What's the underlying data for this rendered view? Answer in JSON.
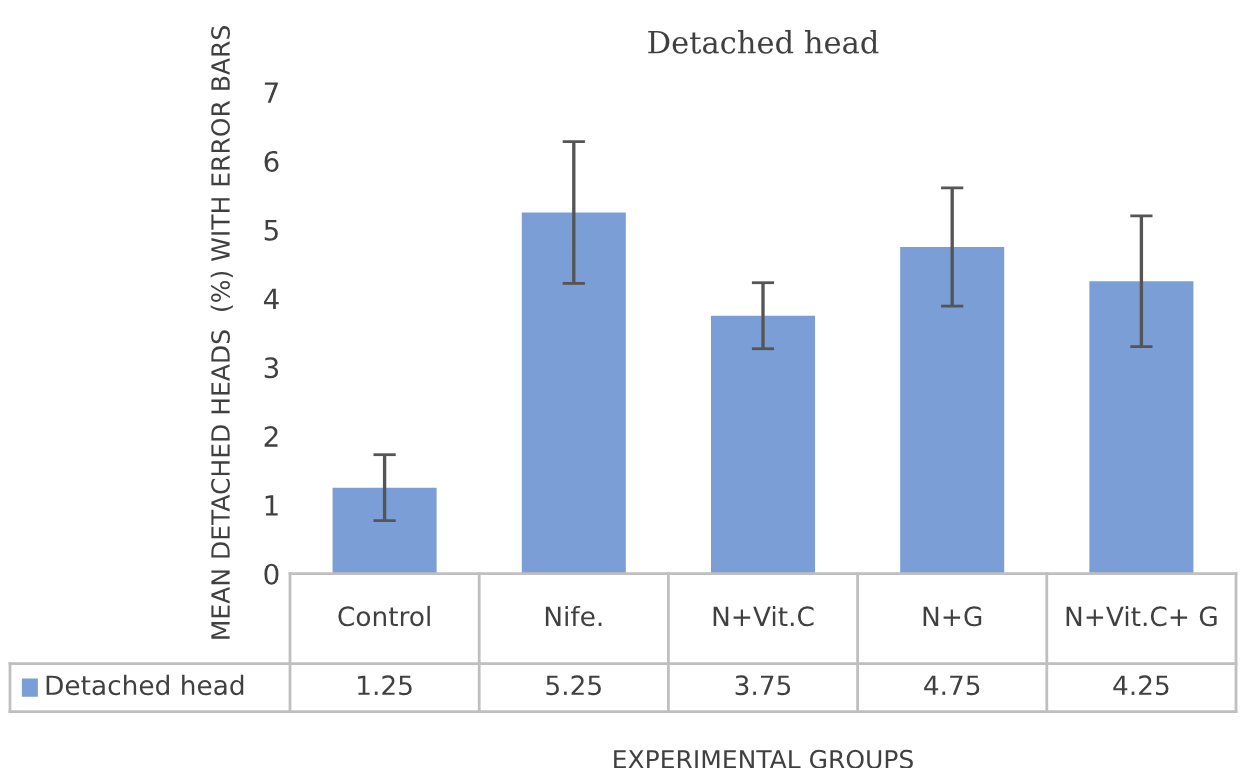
{
  "chart_data": {
    "type": "bar",
    "title": "Detached head",
    "xlabel": "EXPERIMENTAL GROUPS",
    "ylabel": "MEAN DETACHED HEADS  (%) WITH ERROR BARS",
    "categories": [
      "Control",
      "Nife.",
      "N+Vit.C",
      "N+G",
      "N+Vit.C+ G"
    ],
    "series": [
      {
        "name": "Detached head",
        "color": "#7b9ed7",
        "values": [
          1.25,
          5.25,
          3.75,
          4.75,
          4.25
        ],
        "errors": [
          0.48,
          1.03,
          0.48,
          0.86,
          0.95
        ]
      }
    ],
    "ylim": [
      0,
      7
    ],
    "yticks": [
      0,
      1,
      2,
      3,
      4,
      5,
      6,
      7
    ],
    "grid": false,
    "legend": "bottom",
    "data_labels": true
  }
}
